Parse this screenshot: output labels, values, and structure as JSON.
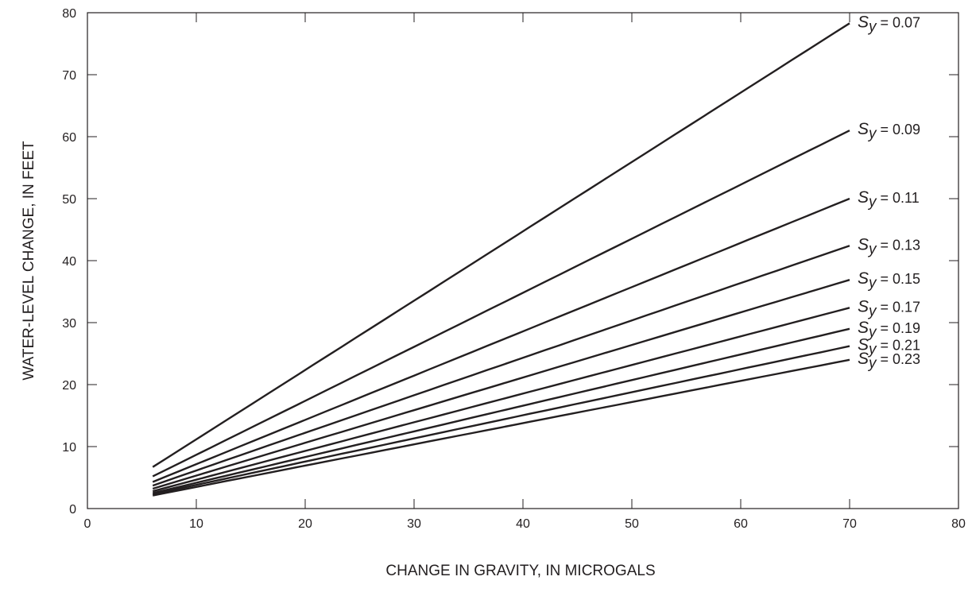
{
  "chart_data": {
    "type": "line",
    "xlabel": "CHANGE IN GRAVITY, IN MICROGALS",
    "ylabel": "WATER-LEVEL CHANGE, IN FEET",
    "xlim": [
      0,
      80
    ],
    "ylim": [
      0,
      80
    ],
    "xticks": [
      0,
      10,
      20,
      30,
      40,
      50,
      60,
      70,
      80
    ],
    "yticks": [
      0,
      10,
      20,
      30,
      40,
      50,
      60,
      70,
      80
    ],
    "grid": false,
    "legend": "inline-right",
    "x": [
      6,
      70
    ],
    "series": [
      {
        "name": "Sy = 0.07",
        "symbol": "S",
        "subscript": "y",
        "value_text": " = 0.07",
        "values": [
          6.7,
          78.3
        ]
      },
      {
        "name": "Sy = 0.09",
        "symbol": "S",
        "subscript": "y",
        "value_text": " = 0.09",
        "values": [
          5.2,
          61.0
        ]
      },
      {
        "name": "Sy = 0.11",
        "symbol": "S",
        "subscript": "y",
        "value_text": " = 0.11",
        "values": [
          4.3,
          50.0
        ]
      },
      {
        "name": "Sy = 0.13",
        "symbol": "S",
        "subscript": "y",
        "value_text": " = 0.13",
        "values": [
          3.7,
          42.4
        ]
      },
      {
        "name": "Sy = 0.15",
        "symbol": "S",
        "subscript": "y",
        "value_text": " = 0.15",
        "values": [
          3.2,
          36.9
        ]
      },
      {
        "name": "Sy = 0.17",
        "symbol": "S",
        "subscript": "y",
        "value_text": " = 0.17",
        "values": [
          2.8,
          32.4
        ]
      },
      {
        "name": "Sy = 0.19",
        "symbol": "S",
        "subscript": "y",
        "value_text": " = 0.19",
        "values": [
          2.5,
          29.0
        ]
      },
      {
        "name": "Sy = 0.21",
        "symbol": "S",
        "subscript": "y",
        "value_text": " = 0.21",
        "values": [
          2.3,
          26.2
        ]
      },
      {
        "name": "Sy = 0.23",
        "symbol": "S",
        "subscript": "y",
        "value_text": " = 0.23",
        "values": [
          2.1,
          24.0
        ]
      }
    ],
    "color": "#231f20"
  }
}
